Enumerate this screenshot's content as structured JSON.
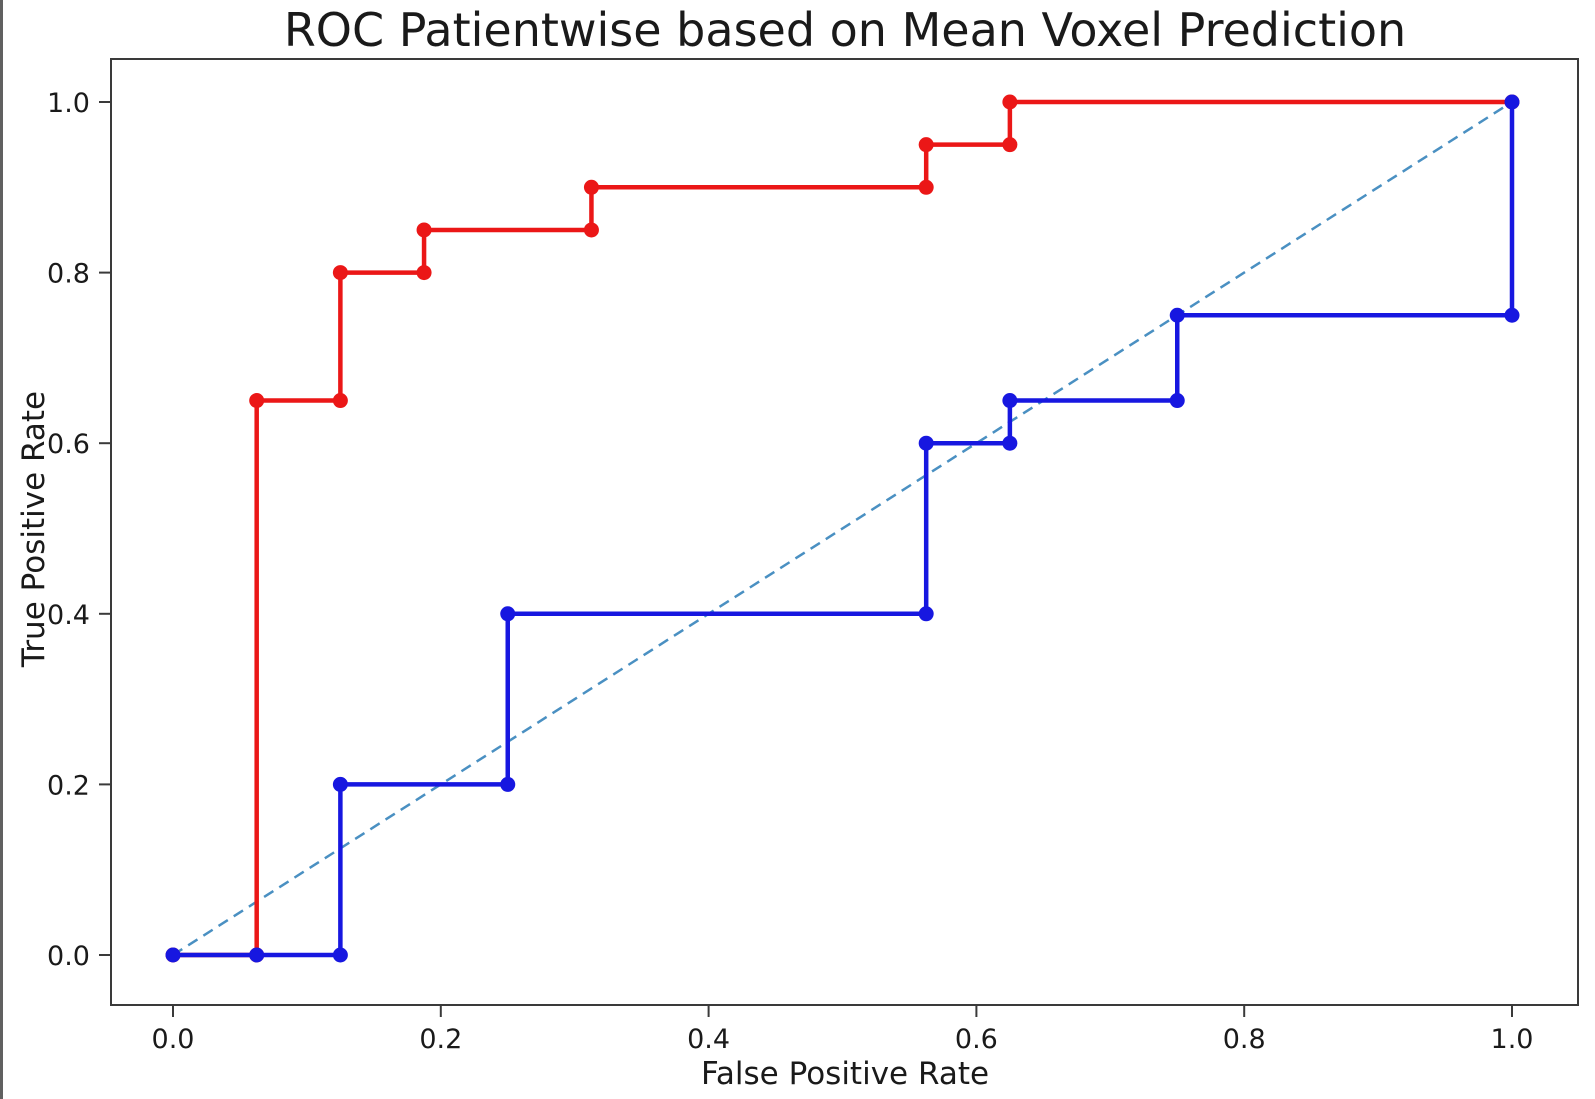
{
  "figure": {
    "background": "#ffffff",
    "frame_color": "#3a3a3a",
    "text_color": "#1a1a1a"
  },
  "chart_data": {
    "type": "line",
    "subtype": "roc-step-curve",
    "title": "ROC Patientwise based on Mean Voxel Prediction",
    "xlabel": "False Positive Rate",
    "ylabel": "True Positive Rate",
    "xlim": [
      0.0,
      1.0
    ],
    "ylim": [
      0.0,
      1.0
    ],
    "xticks": [
      "0.0",
      "0.2",
      "0.4",
      "0.6",
      "0.8",
      "1.0"
    ],
    "yticks": [
      "0.0",
      "0.2",
      "0.4",
      "0.6",
      "0.8",
      "1.0"
    ],
    "grid": false,
    "legend": null,
    "series": [
      {
        "name": "red-roc-curve",
        "color": "#eb1717",
        "marker": "circle",
        "points": [
          [
            0.0,
            0.0
          ],
          [
            0.0625,
            0.0
          ],
          [
            0.0625,
            0.65
          ],
          [
            0.125,
            0.65
          ],
          [
            0.125,
            0.8
          ],
          [
            0.1875,
            0.8
          ],
          [
            0.1875,
            0.85
          ],
          [
            0.3125,
            0.85
          ],
          [
            0.3125,
            0.9
          ],
          [
            0.5625,
            0.9
          ],
          [
            0.5625,
            0.95
          ],
          [
            0.625,
            0.95
          ],
          [
            0.625,
            1.0
          ],
          [
            1.0,
            1.0
          ]
        ]
      },
      {
        "name": "blue-roc-curve",
        "color": "#1717e0",
        "marker": "circle",
        "points": [
          [
            0.0,
            0.0
          ],
          [
            0.0625,
            0.0
          ],
          [
            0.125,
            0.0
          ],
          [
            0.125,
            0.2
          ],
          [
            0.25,
            0.2
          ],
          [
            0.25,
            0.4
          ],
          [
            0.5625,
            0.4
          ],
          [
            0.5625,
            0.6
          ],
          [
            0.625,
            0.6
          ],
          [
            0.625,
            0.65
          ],
          [
            0.75,
            0.65
          ],
          [
            0.75,
            0.75
          ],
          [
            1.0,
            0.75
          ],
          [
            1.0,
            1.0
          ]
        ]
      }
    ],
    "reference_line": {
      "name": "chance-diagonal",
      "color": "#4a90c2",
      "dashed": true,
      "from": [
        0.0,
        0.0
      ],
      "to": [
        1.0,
        1.0
      ]
    }
  }
}
